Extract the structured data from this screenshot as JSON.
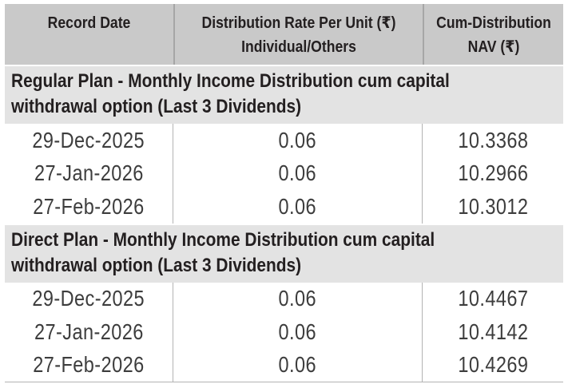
{
  "colors": {
    "header_bg": "#c9c9c9",
    "section_bg": "#e3e3e3",
    "header_text": "#231f20",
    "data_text": "#3d3d3d",
    "divider": "#b3b3b3"
  },
  "header": {
    "col1": "Record Date",
    "col2_line1": "Distribution Rate Per Unit (₹)",
    "col2_line2": "Individual/Others",
    "col3_line1": "Cum-Distribution",
    "col3_line2": "NAV (₹)"
  },
  "sections": [
    {
      "title_line1": "Regular Plan - Monthly Income Distribution cum capital",
      "title_line2": "withdrawal option (Last 3 Dividends)",
      "rows": [
        {
          "record_date": "29-Dec-2025",
          "rate": "0.06",
          "nav": "10.3368"
        },
        {
          "record_date": "27-Jan-2026",
          "rate": "0.06",
          "nav": "10.2966"
        },
        {
          "record_date": "27-Feb-2026",
          "rate": "0.06",
          "nav": "10.3012"
        }
      ]
    },
    {
      "title_line1": "Direct Plan - Monthly Income Distribution cum capital",
      "title_line2": "withdrawal option (Last 3 Dividends)",
      "rows": [
        {
          "record_date": "29-Dec-2025",
          "rate": "0.06",
          "nav": "10.4467"
        },
        {
          "record_date": "27-Jan-2026",
          "rate": "0.06",
          "nav": "10.4142"
        },
        {
          "record_date": "27-Feb-2026",
          "rate": "0.06",
          "nav": "10.4269"
        }
      ]
    }
  ]
}
